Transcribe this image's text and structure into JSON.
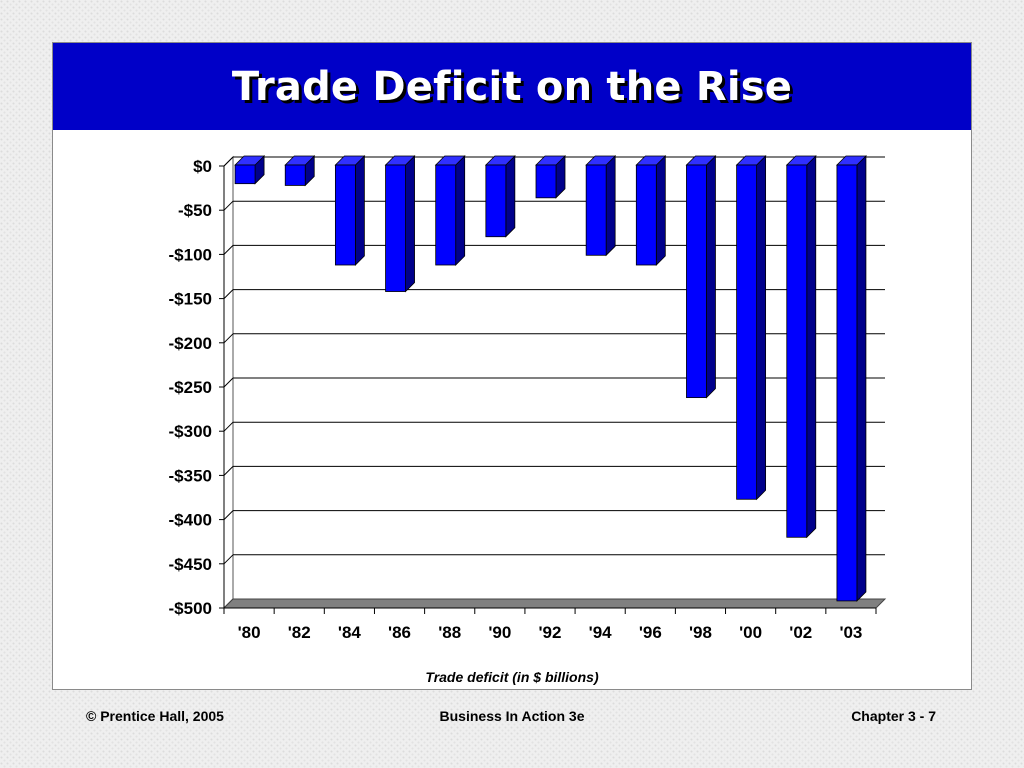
{
  "slide": {
    "title": "Trade Deficit on the Rise"
  },
  "chart_data": {
    "type": "bar",
    "categories": [
      "'80",
      "'82",
      "'84",
      "'86",
      "'88",
      "'90",
      "'92",
      "'94",
      "'96",
      "'98",
      "'00",
      "'02",
      "'03"
    ],
    "values": [
      -20,
      -22,
      -112,
      -142,
      -112,
      -80,
      -36,
      -101,
      -112,
      -262,
      -377,
      -420,
      -492
    ],
    "title": "",
    "xlabel": "Trade deficit (in $ billions)",
    "ylabel": "",
    "ylim": [
      -500,
      0
    ],
    "yticks": [
      0,
      -50,
      -100,
      -150,
      -200,
      -250,
      -300,
      -350,
      -400,
      -450,
      -500
    ],
    "ytick_labels": [
      "$0",
      "-$50",
      "-$100",
      "-$150",
      "-$200",
      "-$250",
      "-$300",
      "-$350",
      "-$400",
      "-$450",
      "-$500"
    ],
    "grid": true,
    "style": "3d-column",
    "bar_color": "#0000ff",
    "bar_side_color": "#00008b"
  },
  "footer": {
    "left": "© Prentice Hall, 2005",
    "center": "Business In Action 3e",
    "right": "Chapter 3 - 7"
  }
}
